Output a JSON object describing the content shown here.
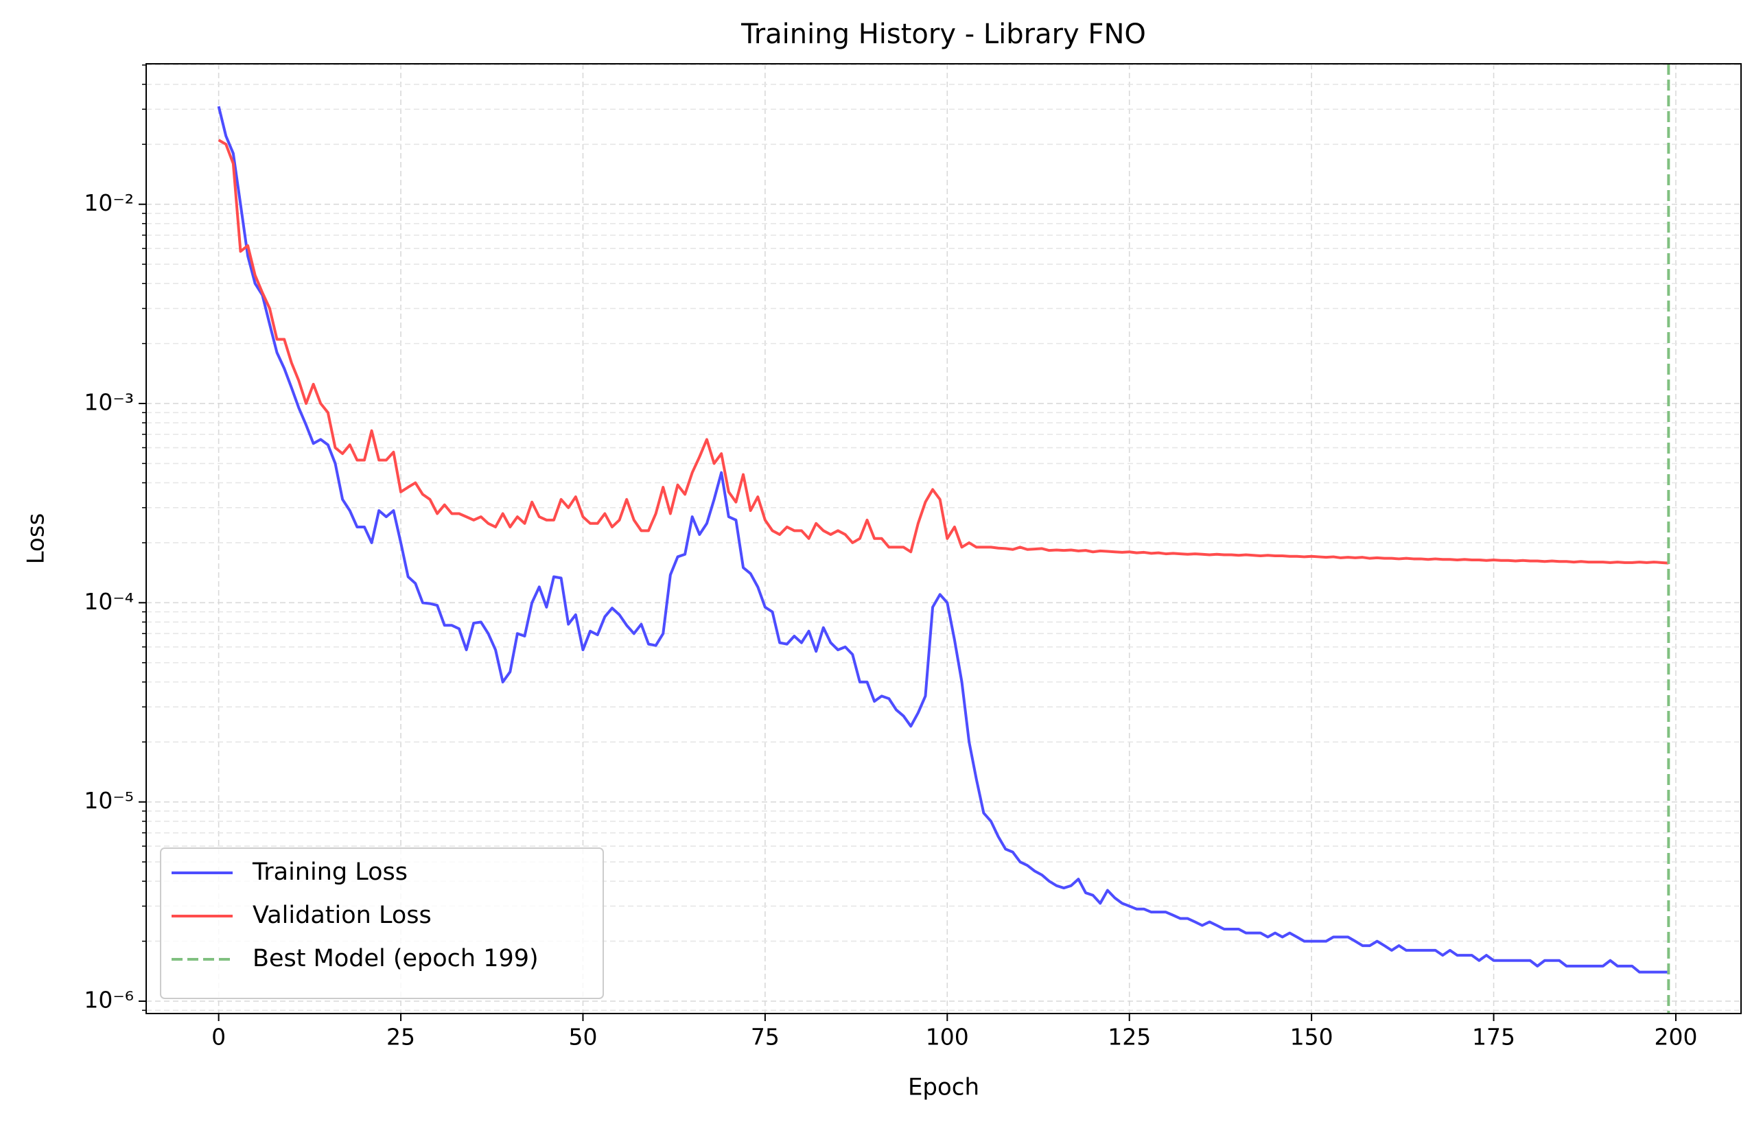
{
  "chart_data": {
    "type": "line",
    "title": "Training History - Library FNO",
    "x_label": "Epoch",
    "y_label": "Loss",
    "yscale": "log",
    "grid": true,
    "legend": "lower left",
    "xlim": [
      -9.95,
      208.95
    ],
    "xticks": [
      0,
      25,
      50,
      75,
      100,
      125,
      150,
      175,
      200
    ],
    "ylim": [
      8.67e-07,
      0.0507
    ],
    "yticks": [
      {
        "value": 1e-06,
        "label": "10⁻⁶"
      },
      {
        "value": 1e-05,
        "label": "10⁻⁵"
      },
      {
        "value": 0.0001,
        "label": "10⁻⁴"
      },
      {
        "value": 0.001,
        "label": "10⁻³"
      },
      {
        "value": 0.01,
        "label": "10⁻²"
      }
    ],
    "yminorticks": [
      9e-07,
      2e-06,
      3e-06,
      4e-06,
      5e-06,
      6e-06,
      7e-06,
      8e-06,
      9e-06,
      2e-05,
      3e-05,
      4e-05,
      5e-05,
      6e-05,
      7e-05,
      8e-05,
      9e-05,
      0.0002,
      0.0003,
      0.0004,
      0.0005,
      0.0006,
      0.0007,
      0.0008,
      0.0009,
      0.002,
      0.003,
      0.004,
      0.005,
      0.006,
      0.007,
      0.008,
      0.009,
      0.02,
      0.03,
      0.04,
      0.05
    ],
    "x": [
      0,
      1,
      2,
      3,
      4,
      5,
      6,
      7,
      8,
      9,
      10,
      11,
      12,
      13,
      14,
      15,
      16,
      17,
      18,
      19,
      20,
      21,
      22,
      23,
      24,
      25,
      26,
      27,
      28,
      29,
      30,
      31,
      32,
      33,
      34,
      35,
      36,
      37,
      38,
      39,
      40,
      41,
      42,
      43,
      44,
      45,
      46,
      47,
      48,
      49,
      50,
      51,
      52,
      53,
      54,
      55,
      56,
      57,
      58,
      59,
      60,
      61,
      62,
      63,
      64,
      65,
      66,
      67,
      68,
      69,
      70,
      71,
      72,
      73,
      74,
      75,
      76,
      77,
      78,
      79,
      80,
      81,
      82,
      83,
      84,
      85,
      86,
      87,
      88,
      89,
      90,
      91,
      92,
      93,
      94,
      95,
      96,
      97,
      98,
      99,
      100,
      101,
      102,
      103,
      104,
      105,
      106,
      107,
      108,
      109,
      110,
      111,
      112,
      113,
      114,
      115,
      116,
      117,
      118,
      119,
      120,
      121,
      122,
      123,
      124,
      125,
      126,
      127,
      128,
      129,
      130,
      131,
      132,
      133,
      134,
      135,
      136,
      137,
      138,
      139,
      140,
      141,
      142,
      143,
      144,
      145,
      146,
      147,
      148,
      149,
      150,
      151,
      152,
      153,
      154,
      155,
      156,
      157,
      158,
      159,
      160,
      161,
      162,
      163,
      164,
      165,
      166,
      167,
      168,
      169,
      170,
      171,
      172,
      173,
      174,
      175,
      176,
      177,
      178,
      179,
      180,
      181,
      182,
      183,
      184,
      185,
      186,
      187,
      188,
      189,
      190,
      191,
      192,
      193,
      194,
      195,
      196,
      197,
      198,
      199
    ],
    "series": [
      {
        "name": "Training Loss",
        "color": "#4d4dff",
        "values": [
          0.031,
          0.022,
          0.018,
          0.01,
          0.0055,
          0.004,
          0.0035,
          0.0025,
          0.0018,
          0.0015,
          0.0012,
          0.00095,
          0.00078,
          0.00063,
          0.00066,
          0.00062,
          0.0005,
          0.00033,
          0.00029,
          0.00024,
          0.00024,
          0.0002,
          0.00029,
          0.00027,
          0.00029,
          0.0002,
          0.000135,
          0.000125,
          0.0001,
          9.9e-05,
          9.7e-05,
          7.7e-05,
          7.7e-05,
          7.4e-05,
          5.8e-05,
          7.9e-05,
          8e-05,
          7e-05,
          5.8e-05,
          4e-05,
          4.5e-05,
          7e-05,
          6.8e-05,
          0.0001,
          0.00012,
          9.5e-05,
          0.000135,
          0.000133,
          7.8e-05,
          8.7e-05,
          5.8e-05,
          7.2e-05,
          6.9e-05,
          8.5e-05,
          9.4e-05,
          8.7e-05,
          7.7e-05,
          7e-05,
          7.8e-05,
          6.2e-05,
          6.1e-05,
          7e-05,
          0.000138,
          0.00017,
          0.000175,
          0.00027,
          0.00022,
          0.00025,
          0.00033,
          0.00045,
          0.00027,
          0.00026,
          0.00015,
          0.00014,
          0.00012,
          9.5e-05,
          9e-05,
          6.3e-05,
          6.2e-05,
          6.8e-05,
          6.3e-05,
          7.2e-05,
          5.7e-05,
          7.5e-05,
          6.3e-05,
          5.8e-05,
          6e-05,
          5.5e-05,
          4e-05,
          4e-05,
          3.2e-05,
          3.4e-05,
          3.3e-05,
          2.9e-05,
          2.7e-05,
          2.4e-05,
          2.8e-05,
          3.4e-05,
          9.5e-05,
          0.00011,
          0.0001,
          6.5e-05,
          4e-05,
          2e-05,
          1.3e-05,
          8.8e-06,
          8e-06,
          6.7e-06,
          5.8e-06,
          5.6e-06,
          5e-06,
          4.8e-06,
          4.5e-06,
          4.3e-06,
          4e-06,
          3.8e-06,
          3.7e-06,
          3.8e-06,
          4.1e-06,
          3.5e-06,
          3.4e-06,
          3.1e-06,
          3.6e-06,
          3.3e-06,
          3.1e-06,
          3e-06,
          2.9e-06,
          2.9e-06,
          2.8e-06,
          2.8e-06,
          2.8e-06,
          2.7e-06,
          2.6e-06,
          2.6e-06,
          2.5e-06,
          2.4e-06,
          2.5e-06,
          2.4e-06,
          2.3e-06,
          2.3e-06,
          2.3e-06,
          2.2e-06,
          2.2e-06,
          2.2e-06,
          2.1e-06,
          2.2e-06,
          2.1e-06,
          2.2e-06,
          2.1e-06,
          2e-06,
          2e-06,
          2e-06,
          2e-06,
          2.1e-06,
          2.1e-06,
          2.1e-06,
          2e-06,
          1.9e-06,
          1.9e-06,
          2e-06,
          1.9e-06,
          1.8e-06,
          1.9e-06,
          1.8e-06,
          1.8e-06,
          1.8e-06,
          1.8e-06,
          1.8e-06,
          1.7e-06,
          1.8e-06,
          1.7e-06,
          1.7e-06,
          1.7e-06,
          1.6e-06,
          1.7e-06,
          1.6e-06,
          1.6e-06,
          1.6e-06,
          1.6e-06,
          1.6e-06,
          1.6e-06,
          1.5e-06,
          1.6e-06,
          1.6e-06,
          1.6e-06,
          1.5e-06,
          1.5e-06,
          1.5e-06,
          1.5e-06,
          1.5e-06,
          1.5e-06,
          1.6e-06,
          1.5e-06,
          1.5e-06,
          1.5e-06,
          1.4e-06,
          1.4e-06,
          1.4e-06,
          1.4e-06,
          1.4e-06
        ]
      },
      {
        "name": "Validation Loss",
        "color": "#ff4d4d",
        "values": [
          0.021,
          0.02,
          0.016,
          0.0058,
          0.0062,
          0.0044,
          0.0036,
          0.003,
          0.0021,
          0.0021,
          0.0016,
          0.0013,
          0.001,
          0.00125,
          0.001,
          0.0009,
          0.0006,
          0.00056,
          0.00062,
          0.00052,
          0.00052,
          0.00073,
          0.00052,
          0.00052,
          0.00057,
          0.00036,
          0.00038,
          0.0004,
          0.00035,
          0.00033,
          0.00028,
          0.00031,
          0.00028,
          0.00028,
          0.00027,
          0.00026,
          0.00027,
          0.00025,
          0.00024,
          0.00028,
          0.00024,
          0.00027,
          0.00025,
          0.00032,
          0.00027,
          0.00026,
          0.00026,
          0.00033,
          0.0003,
          0.00034,
          0.00027,
          0.00025,
          0.00025,
          0.00028,
          0.00024,
          0.00026,
          0.00033,
          0.00026,
          0.00023,
          0.00023,
          0.00028,
          0.00038,
          0.00028,
          0.00039,
          0.00035,
          0.00045,
          0.00054,
          0.00066,
          0.0005,
          0.00056,
          0.00036,
          0.00032,
          0.00044,
          0.00029,
          0.00034,
          0.00026,
          0.00023,
          0.00022,
          0.00024,
          0.00023,
          0.00023,
          0.00021,
          0.00025,
          0.00023,
          0.00022,
          0.00023,
          0.00022,
          0.0002,
          0.00021,
          0.00026,
          0.00021,
          0.00021,
          0.00019,
          0.00019,
          0.00019,
          0.00018,
          0.00025,
          0.00032,
          0.00037,
          0.00033,
          0.00021,
          0.00024,
          0.00019,
          0.0002,
          0.00019,
          0.00019,
          0.00019,
          0.000188,
          0.000187,
          0.000185,
          0.00019,
          0.000185,
          0.000186,
          0.000187,
          0.000183,
          0.000184,
          0.000183,
          0.000184,
          0.000182,
          0.000183,
          0.00018,
          0.000182,
          0.000181,
          0.00018,
          0.000179,
          0.00018,
          0.000178,
          0.000179,
          0.000177,
          0.000178,
          0.000176,
          0.000177,
          0.000176,
          0.000175,
          0.000176,
          0.000175,
          0.000174,
          0.000175,
          0.000174,
          0.000174,
          0.000173,
          0.000174,
          0.000173,
          0.000172,
          0.000173,
          0.000172,
          0.000172,
          0.000171,
          0.000171,
          0.00017,
          0.000171,
          0.00017,
          0.000169,
          0.00017,
          0.000168,
          0.000169,
          0.000168,
          0.000169,
          0.000167,
          0.000168,
          0.000167,
          0.000167,
          0.000166,
          0.000167,
          0.000166,
          0.000166,
          0.000165,
          0.000166,
          0.000165,
          0.000165,
          0.000164,
          0.000165,
          0.000164,
          0.000164,
          0.000163,
          0.000164,
          0.000163,
          0.000163,
          0.000162,
          0.000163,
          0.000162,
          0.000162,
          0.000161,
          0.000162,
          0.000161,
          0.000161,
          0.00016,
          0.000161,
          0.00016,
          0.00016,
          0.00016,
          0.000159,
          0.00016,
          0.000159,
          0.000159,
          0.00016,
          0.000159,
          0.00016,
          0.000159,
          0.000158
        ]
      }
    ],
    "reference_lines": [
      {
        "name": "Best Model (epoch 199)",
        "x": 199,
        "color": "#80c080"
      }
    ]
  }
}
